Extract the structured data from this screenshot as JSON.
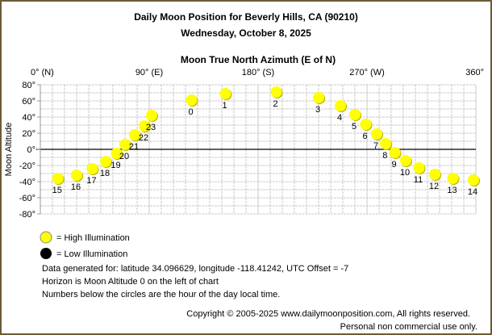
{
  "chart_data": {
    "type": "scatter",
    "title": "Daily Moon Position for Beverly Hills, CA (90210)",
    "subtitle": "Wednesday, October 8, 2025",
    "xlabel": "Moon True North Azimuth (E of N)",
    "ylabel": "Moon Altitude",
    "xlim": [
      0,
      360
    ],
    "ylim": [
      -80,
      80
    ],
    "grid": true,
    "x_ticks": [
      "0° (N)",
      "90° (E)",
      "180° (S)",
      "270° (W)",
      "360°"
    ],
    "x_tick_values": [
      0,
      90,
      180,
      270,
      360
    ],
    "y_ticks": [
      "80°",
      "60°",
      "40°",
      "20°",
      "0°",
      "-20°",
      "-40°",
      "-60°",
      "-80°"
    ],
    "y_tick_values": [
      80,
      60,
      40,
      20,
      0,
      -20,
      -40,
      -60,
      -80
    ],
    "point_color": "#ffff00",
    "points": [
      {
        "hour": "0",
        "azimuth": 125,
        "altitude": 61
      },
      {
        "hour": "1",
        "azimuth": 153,
        "altitude": 69
      },
      {
        "hour": "2",
        "azimuth": 195,
        "altitude": 71
      },
      {
        "hour": "3",
        "azimuth": 230,
        "altitude": 64
      },
      {
        "hour": "4",
        "azimuth": 248,
        "altitude": 54
      },
      {
        "hour": "5",
        "azimuth": 260,
        "altitude": 43
      },
      {
        "hour": "6",
        "azimuth": 269,
        "altitude": 31
      },
      {
        "hour": "7",
        "azimuth": 278,
        "altitude": 19
      },
      {
        "hour": "8",
        "azimuth": 285.5,
        "altitude": 7
      },
      {
        "hour": "9",
        "azimuth": 293,
        "altitude": -4
      },
      {
        "hour": "10",
        "azimuth": 302,
        "altitude": -14
      },
      {
        "hour": "11",
        "azimuth": 313,
        "altitude": -23
      },
      {
        "hour": "12",
        "azimuth": 326,
        "altitude": -31
      },
      {
        "hour": "13",
        "azimuth": 341,
        "altitude": -36
      },
      {
        "hour": "14",
        "azimuth": 358,
        "altitude": -38
      },
      {
        "hour": "15",
        "azimuth": 14.5,
        "altitude": -36
      },
      {
        "hour": "16",
        "azimuth": 30,
        "altitude": -32
      },
      {
        "hour": "17",
        "azimuth": 43,
        "altitude": -24
      },
      {
        "hour": "18",
        "azimuth": 54,
        "altitude": -15
      },
      {
        "hour": "19",
        "azimuth": 63,
        "altitude": -5
      },
      {
        "hour": "20",
        "azimuth": 70,
        "altitude": 6
      },
      {
        "hour": "21",
        "azimuth": 78,
        "altitude": 18
      },
      {
        "hour": "22",
        "azimuth": 86,
        "altitude": 29
      },
      {
        "hour": "23",
        "azimuth": 92,
        "altitude": 42
      }
    ]
  },
  "legend": {
    "high": {
      "label": "= High Illumination",
      "color": "#ffff00"
    },
    "low": {
      "label": "= Low Illumination",
      "color": "#000000"
    }
  },
  "notes": [
    "Data generated for: latitude 34.096629, longitude -118.41242, UTC Offset = -7",
    "Horizon is Moon Altitude 0 on the left of chart",
    "Numbers below the circles are the hour of the day local time."
  ],
  "footer": {
    "copyright": "Copyright © 2005-2025 www.dailymoonposition.com, All rights reserved.",
    "usage": "Personal non commercial use only."
  }
}
